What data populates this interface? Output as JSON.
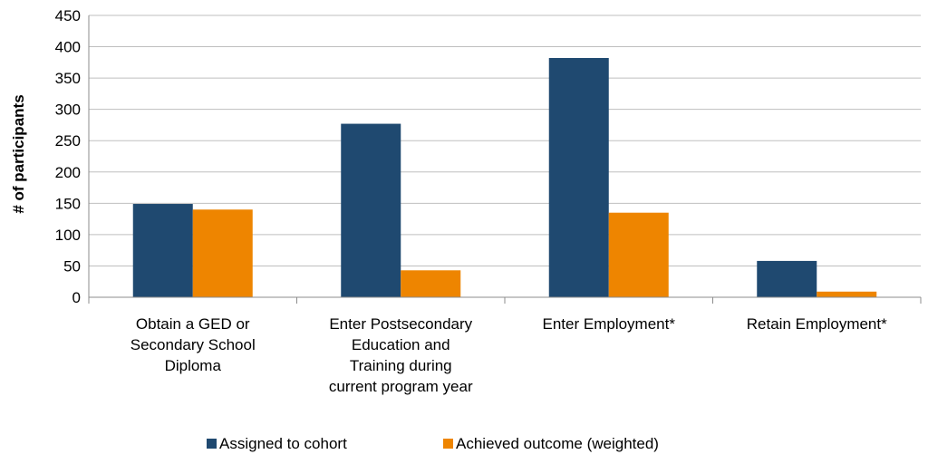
{
  "chart_data": {
    "type": "bar",
    "title": "",
    "xlabel": "",
    "ylabel": "# of participants",
    "ylim": [
      0,
      450
    ],
    "yticks": [
      0,
      50,
      100,
      150,
      200,
      250,
      300,
      350,
      400,
      450
    ],
    "grid": true,
    "legend_position": "bottom",
    "categories": [
      [
        "Obtain a GED or",
        "Secondary School",
        "Diploma"
      ],
      [
        "Enter Postsecondary",
        "Education and",
        "Training during",
        "current program year"
      ],
      [
        "Enter Employment*"
      ],
      [
        "Retain Employment*"
      ]
    ],
    "series": [
      {
        "name": "Assigned to cohort",
        "color": "#1f4970",
        "values": [
          149,
          277,
          382,
          58
        ]
      },
      {
        "name": "Achieved outcome (weighted)",
        "color": "#ee8500",
        "values": [
          140,
          43,
          135,
          9
        ]
      }
    ]
  }
}
